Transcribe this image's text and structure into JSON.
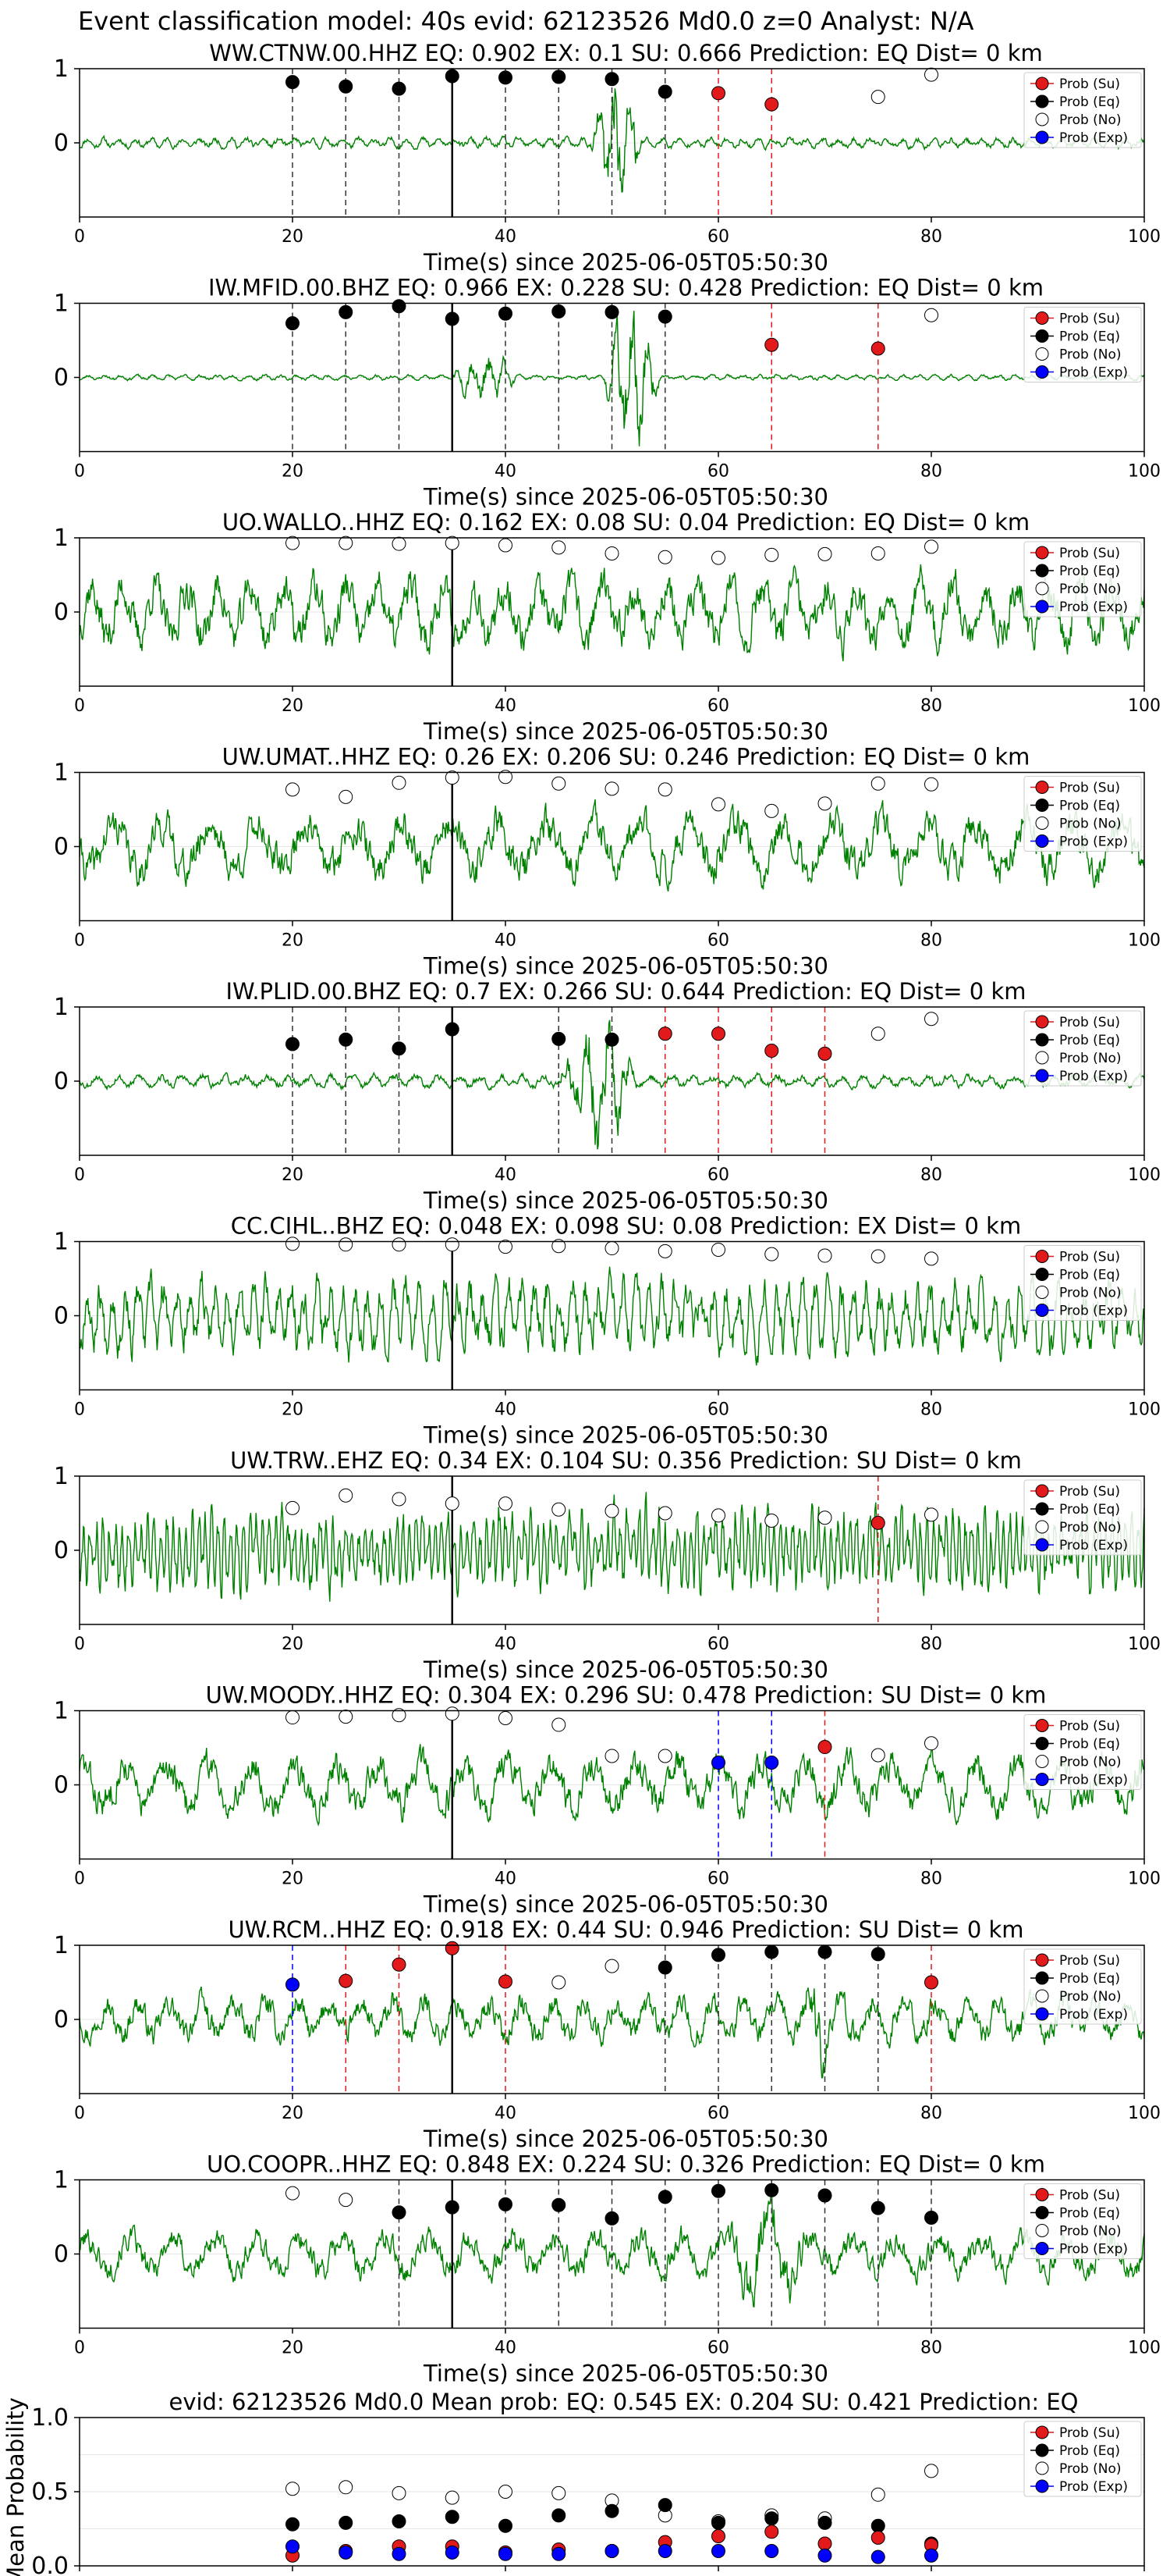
{
  "figure_title": "Event classification model: 40s evid: 62123526 Md0.0 z=0 Analyst: N/A",
  "legend_labels": [
    "Prob (Su)",
    "Prob (Eq)",
    "Prob (No)",
    "Prob (Exp)"
  ],
  "colors": {
    "Su": "#e31a1c",
    "Eq": "#000000",
    "No": "#ffffff",
    "Exp": "#0000ff",
    "waveform": "#008000",
    "pick_line": "#000000"
  },
  "x_axis_label": "Time(s) since 2025-06-05T05:50:30",
  "x_ticks": [
    0,
    20,
    40,
    60,
    80,
    100
  ],
  "y_ticks": [
    0,
    1
  ],
  "window_times": [
    20,
    25,
    30,
    35,
    40,
    45,
    50,
    55,
    60,
    65,
    70,
    75,
    80
  ],
  "chart_data": [
    {
      "type": "line",
      "title": "WW.CTNW.00.HHZ    EQ: 0.902  EX: 0.1  SU: 0.666   Prediction: EQ    Dist= 0 km",
      "xlim": [
        0,
        100
      ],
      "ylim": [
        -1,
        1
      ],
      "pick_time": 35,
      "waveform": {
        "period": 1.5,
        "noise_amp": 0.08,
        "bursts": [
          {
            "start": 48,
            "end": 56,
            "amp": 1.0
          }
        ],
        "seed": 11
      },
      "points": [
        {
          "x": 20,
          "y": 0.82,
          "cls": "Eq"
        },
        {
          "x": 25,
          "y": 0.76,
          "cls": "Eq"
        },
        {
          "x": 30,
          "y": 0.73,
          "cls": "Eq"
        },
        {
          "x": 35,
          "y": 0.9,
          "cls": "Eq"
        },
        {
          "x": 40,
          "y": 0.88,
          "cls": "Eq"
        },
        {
          "x": 45,
          "y": 0.89,
          "cls": "Eq"
        },
        {
          "x": 50,
          "y": 0.86,
          "cls": "Eq"
        },
        {
          "x": 55,
          "y": 0.69,
          "cls": "Eq"
        },
        {
          "x": 60,
          "y": 0.67,
          "cls": "Su"
        },
        {
          "x": 65,
          "y": 0.52,
          "cls": "Su"
        },
        {
          "x": 75,
          "y": 0.62,
          "cls": "No"
        },
        {
          "x": 80,
          "y": 0.92,
          "cls": "No"
        }
      ]
    },
    {
      "type": "line",
      "title": "IW.MFID.00.BHZ    EQ: 0.966  EX: 0.228  SU: 0.428   Prediction: EQ    Dist= 0 km",
      "xlim": [
        0,
        100
      ],
      "ylim": [
        -1,
        1
      ],
      "pick_time": 35,
      "waveform": {
        "period": 1.5,
        "noise_amp": 0.04,
        "bursts": [
          {
            "start": 35,
            "end": 45,
            "amp": 0.35
          },
          {
            "start": 49,
            "end": 58,
            "amp": 0.95
          }
        ],
        "seed": 23
      },
      "points": [
        {
          "x": 20,
          "y": 0.73,
          "cls": "Eq"
        },
        {
          "x": 25,
          "y": 0.88,
          "cls": "Eq"
        },
        {
          "x": 30,
          "y": 0.96,
          "cls": "Eq"
        },
        {
          "x": 35,
          "y": 0.79,
          "cls": "Eq"
        },
        {
          "x": 40,
          "y": 0.86,
          "cls": "Eq"
        },
        {
          "x": 45,
          "y": 0.89,
          "cls": "Eq"
        },
        {
          "x": 50,
          "y": 0.88,
          "cls": "Eq"
        },
        {
          "x": 55,
          "y": 0.82,
          "cls": "Eq"
        },
        {
          "x": 65,
          "y": 0.44,
          "cls": "Su"
        },
        {
          "x": 75,
          "y": 0.39,
          "cls": "Su"
        },
        {
          "x": 80,
          "y": 0.84,
          "cls": "No"
        }
      ]
    },
    {
      "type": "line",
      "title": "UO.WALLO..HHZ   EQ: 0.162  EX: 0.08  SU: 0.04   Prediction: EQ    Dist= 0 km",
      "xlim": [
        0,
        100
      ],
      "ylim": [
        -1,
        1
      ],
      "pick_time": 35,
      "waveform": {
        "period": 3,
        "noise_amp": 0.55,
        "bursts": [],
        "seed": 37
      },
      "points": [
        {
          "x": 20,
          "y": 0.93,
          "cls": "No"
        },
        {
          "x": 25,
          "y": 0.93,
          "cls": "No"
        },
        {
          "x": 30,
          "y": 0.92,
          "cls": "No"
        },
        {
          "x": 35,
          "y": 0.93,
          "cls": "No"
        },
        {
          "x": 40,
          "y": 0.9,
          "cls": "No"
        },
        {
          "x": 45,
          "y": 0.87,
          "cls": "No"
        },
        {
          "x": 50,
          "y": 0.79,
          "cls": "No"
        },
        {
          "x": 55,
          "y": 0.74,
          "cls": "No"
        },
        {
          "x": 60,
          "y": 0.73,
          "cls": "No"
        },
        {
          "x": 65,
          "y": 0.77,
          "cls": "No"
        },
        {
          "x": 70,
          "y": 0.78,
          "cls": "No"
        },
        {
          "x": 75,
          "y": 0.79,
          "cls": "No"
        },
        {
          "x": 80,
          "y": 0.88,
          "cls": "No"
        }
      ]
    },
    {
      "type": "line",
      "title": "UW.UMAT..HHZ   EQ: 0.26  EX: 0.206  SU: 0.246   Prediction: EQ    Dist= 0 km",
      "xlim": [
        0,
        100
      ],
      "ylim": [
        -1,
        1
      ],
      "pick_time": 35,
      "waveform": {
        "period": 4.5,
        "noise_amp": 0.5,
        "bursts": [],
        "seed": 41
      },
      "points": [
        {
          "x": 20,
          "y": 0.77,
          "cls": "No"
        },
        {
          "x": 25,
          "y": 0.67,
          "cls": "No"
        },
        {
          "x": 30,
          "y": 0.86,
          "cls": "No"
        },
        {
          "x": 35,
          "y": 0.93,
          "cls": "No"
        },
        {
          "x": 40,
          "y": 0.94,
          "cls": "No"
        },
        {
          "x": 45,
          "y": 0.85,
          "cls": "No"
        },
        {
          "x": 50,
          "y": 0.78,
          "cls": "No"
        },
        {
          "x": 55,
          "y": 0.77,
          "cls": "No"
        },
        {
          "x": 60,
          "y": 0.57,
          "cls": "No"
        },
        {
          "x": 65,
          "y": 0.48,
          "cls": "No"
        },
        {
          "x": 70,
          "y": 0.58,
          "cls": "No"
        },
        {
          "x": 75,
          "y": 0.85,
          "cls": "No"
        },
        {
          "x": 80,
          "y": 0.84,
          "cls": "No"
        }
      ]
    },
    {
      "type": "line",
      "title": "IW.PLID.00.BHZ    EQ: 0.7  EX: 0.266  SU: 0.644   Prediction: EQ    Dist= 0 km",
      "xlim": [
        0,
        100
      ],
      "ylim": [
        -1,
        1
      ],
      "pick_time": 35,
      "waveform": {
        "period": 2,
        "noise_amp": 0.1,
        "bursts": [
          {
            "start": 45,
            "end": 57,
            "amp": 0.9
          }
        ],
        "seed": 53
      },
      "points": [
        {
          "x": 20,
          "y": 0.5,
          "cls": "Eq"
        },
        {
          "x": 25,
          "y": 0.56,
          "cls": "Eq"
        },
        {
          "x": 30,
          "y": 0.44,
          "cls": "Eq"
        },
        {
          "x": 35,
          "y": 0.7,
          "cls": "Eq"
        },
        {
          "x": 45,
          "y": 0.57,
          "cls": "Eq"
        },
        {
          "x": 50,
          "y": 0.56,
          "cls": "Eq"
        },
        {
          "x": 55,
          "y": 0.64,
          "cls": "Su"
        },
        {
          "x": 60,
          "y": 0.64,
          "cls": "Su"
        },
        {
          "x": 65,
          "y": 0.41,
          "cls": "Su"
        },
        {
          "x": 70,
          "y": 0.37,
          "cls": "Su"
        },
        {
          "x": 75,
          "y": 0.64,
          "cls": "No"
        },
        {
          "x": 80,
          "y": 0.84,
          "cls": "No"
        }
      ]
    },
    {
      "type": "line",
      "title": "CC.CIHL..BHZ   EQ: 0.048  EX: 0.098  SU: 0.08   Prediction: EX    Dist= 0 km",
      "xlim": [
        0,
        100
      ],
      "ylim": [
        -1,
        1
      ],
      "pick_time": 35,
      "waveform": {
        "period": 1.2,
        "noise_amp": 0.55,
        "bursts": [],
        "seed": 67
      },
      "points": [
        {
          "x": 20,
          "y": 0.97,
          "cls": "No"
        },
        {
          "x": 25,
          "y": 0.96,
          "cls": "No"
        },
        {
          "x": 30,
          "y": 0.96,
          "cls": "No"
        },
        {
          "x": 35,
          "y": 0.96,
          "cls": "No"
        },
        {
          "x": 40,
          "y": 0.93,
          "cls": "No"
        },
        {
          "x": 45,
          "y": 0.94,
          "cls": "No"
        },
        {
          "x": 50,
          "y": 0.91,
          "cls": "No"
        },
        {
          "x": 55,
          "y": 0.87,
          "cls": "No"
        },
        {
          "x": 60,
          "y": 0.89,
          "cls": "No"
        },
        {
          "x": 65,
          "y": 0.83,
          "cls": "No"
        },
        {
          "x": 70,
          "y": 0.81,
          "cls": "No"
        },
        {
          "x": 75,
          "y": 0.8,
          "cls": "No"
        },
        {
          "x": 80,
          "y": 0.77,
          "cls": "No"
        }
      ]
    },
    {
      "type": "line",
      "title": "UW.TRW..EHZ   EQ: 0.34  EX: 0.104  SU: 0.356   Prediction: SU    Dist= 0 km",
      "xlim": [
        0,
        100
      ],
      "ylim": [
        -1,
        1
      ],
      "pick_time": 35,
      "waveform": {
        "period": 0.6,
        "noise_amp": 0.6,
        "bursts": [],
        "seed": 79
      },
      "points": [
        {
          "x": 20,
          "y": 0.57,
          "cls": "No"
        },
        {
          "x": 25,
          "y": 0.74,
          "cls": "No"
        },
        {
          "x": 30,
          "y": 0.69,
          "cls": "No"
        },
        {
          "x": 35,
          "y": 0.63,
          "cls": "No"
        },
        {
          "x": 40,
          "y": 0.63,
          "cls": "No"
        },
        {
          "x": 45,
          "y": 0.55,
          "cls": "No"
        },
        {
          "x": 50,
          "y": 0.53,
          "cls": "No"
        },
        {
          "x": 55,
          "y": 0.5,
          "cls": "No"
        },
        {
          "x": 60,
          "y": 0.47,
          "cls": "No"
        },
        {
          "x": 65,
          "y": 0.4,
          "cls": "No"
        },
        {
          "x": 70,
          "y": 0.44,
          "cls": "No"
        },
        {
          "x": 75,
          "y": 0.37,
          "cls": "Su"
        },
        {
          "x": 80,
          "y": 0.48,
          "cls": "No"
        }
      ]
    },
    {
      "type": "line",
      "title": "UW.MOODY..HHZ   EQ: 0.304  EX: 0.296  SU: 0.478   Prediction: SU    Dist= 0 km",
      "xlim": [
        0,
        100
      ],
      "ylim": [
        -1,
        1
      ],
      "pick_time": 35,
      "waveform": {
        "period": 4,
        "noise_amp": 0.45,
        "bursts": [],
        "seed": 83
      },
      "points": [
        {
          "x": 20,
          "y": 0.91,
          "cls": "No"
        },
        {
          "x": 25,
          "y": 0.92,
          "cls": "No"
        },
        {
          "x": 30,
          "y": 0.94,
          "cls": "No"
        },
        {
          "x": 35,
          "y": 0.96,
          "cls": "No"
        },
        {
          "x": 40,
          "y": 0.9,
          "cls": "No"
        },
        {
          "x": 45,
          "y": 0.81,
          "cls": "No"
        },
        {
          "x": 50,
          "y": 0.39,
          "cls": "No"
        },
        {
          "x": 55,
          "y": 0.39,
          "cls": "No"
        },
        {
          "x": 60,
          "y": 0.3,
          "cls": "Exp"
        },
        {
          "x": 65,
          "y": 0.3,
          "cls": "Exp"
        },
        {
          "x": 70,
          "y": 0.51,
          "cls": "Su"
        },
        {
          "x": 75,
          "y": 0.4,
          "cls": "No"
        },
        {
          "x": 80,
          "y": 0.56,
          "cls": "No"
        }
      ]
    },
    {
      "type": "line",
      "title": "UW.RCM..HHZ   EQ: 0.918  EX: 0.44  SU: 0.946   Prediction: SU    Dist= 0 km",
      "xlim": [
        0,
        100
      ],
      "ylim": [
        -1,
        1
      ],
      "pick_time": 35,
      "waveform": {
        "period": 3,
        "noise_amp": 0.35,
        "bursts": [
          {
            "start": 68,
            "end": 72,
            "amp": 0.5
          }
        ],
        "seed": 97
      },
      "points": [
        {
          "x": 20,
          "y": 0.47,
          "cls": "Exp"
        },
        {
          "x": 25,
          "y": 0.52,
          "cls": "Su"
        },
        {
          "x": 30,
          "y": 0.74,
          "cls": "Su"
        },
        {
          "x": 35,
          "y": 0.96,
          "cls": "Su"
        },
        {
          "x": 40,
          "y": 0.51,
          "cls": "Su"
        },
        {
          "x": 45,
          "y": 0.5,
          "cls": "No"
        },
        {
          "x": 50,
          "y": 0.72,
          "cls": "No"
        },
        {
          "x": 55,
          "y": 0.7,
          "cls": "Eq"
        },
        {
          "x": 60,
          "y": 0.87,
          "cls": "Eq"
        },
        {
          "x": 65,
          "y": 0.91,
          "cls": "Eq"
        },
        {
          "x": 70,
          "y": 0.91,
          "cls": "Eq"
        },
        {
          "x": 75,
          "y": 0.88,
          "cls": "Eq"
        },
        {
          "x": 80,
          "y": 0.5,
          "cls": "Su"
        }
      ]
    },
    {
      "type": "line",
      "title": "UO.COOPR..HHZ   EQ: 0.848  EX: 0.224  SU: 0.326   Prediction: EQ    Dist= 0 km",
      "xlim": [
        0,
        100
      ],
      "ylim": [
        -1,
        1
      ],
      "pick_time": 35,
      "waveform": {
        "period": 4,
        "noise_amp": 0.35,
        "bursts": [
          {
            "start": 60,
            "end": 74,
            "amp": 0.45
          }
        ],
        "seed": 101
      },
      "points": [
        {
          "x": 20,
          "y": 0.82,
          "cls": "No"
        },
        {
          "x": 25,
          "y": 0.73,
          "cls": "No"
        },
        {
          "x": 30,
          "y": 0.56,
          "cls": "Eq"
        },
        {
          "x": 35,
          "y": 0.63,
          "cls": "Eq"
        },
        {
          "x": 40,
          "y": 0.67,
          "cls": "Eq"
        },
        {
          "x": 45,
          "y": 0.66,
          "cls": "Eq"
        },
        {
          "x": 50,
          "y": 0.48,
          "cls": "Eq"
        },
        {
          "x": 55,
          "y": 0.77,
          "cls": "Eq"
        },
        {
          "x": 60,
          "y": 0.85,
          "cls": "Eq"
        },
        {
          "x": 65,
          "y": 0.86,
          "cls": "Eq"
        },
        {
          "x": 70,
          "y": 0.79,
          "cls": "Eq"
        },
        {
          "x": 75,
          "y": 0.62,
          "cls": "Eq"
        },
        {
          "x": 80,
          "y": 0.49,
          "cls": "Eq"
        }
      ]
    },
    {
      "type": "scatter",
      "title": "evid: 62123526  Md0.0   Mean prob:   EQ: 0.545  EX: 0.204  SU: 0.421   Prediction: EQ",
      "ylabel": "Mean Probability",
      "xlim": [
        0,
        100
      ],
      "ylim": [
        0,
        1
      ],
      "y_ticks": [
        0.0,
        0.5,
        1.0
      ],
      "x": [
        20,
        25,
        30,
        35,
        40,
        45,
        50,
        55,
        60,
        65,
        70,
        75,
        80
      ],
      "series": [
        {
          "name": "Prob (No)",
          "cls": "No",
          "values": [
            0.52,
            0.53,
            0.49,
            0.46,
            0.5,
            0.49,
            0.44,
            0.34,
            0.3,
            0.34,
            0.32,
            0.48,
            0.64
          ]
        },
        {
          "name": "Prob (Eq)",
          "cls": "Eq",
          "values": [
            0.28,
            0.29,
            0.3,
            0.33,
            0.27,
            0.34,
            0.37,
            0.41,
            0.29,
            0.32,
            0.29,
            0.27,
            0.15
          ]
        },
        {
          "name": "Prob (Su)",
          "cls": "Su",
          "values": [
            0.07,
            0.1,
            0.13,
            0.13,
            0.09,
            0.11,
            0.1,
            0.16,
            0.2,
            0.23,
            0.15,
            0.19,
            0.14
          ]
        },
        {
          "name": "Prob (Exp)",
          "cls": "Exp",
          "values": [
            0.13,
            0.09,
            0.08,
            0.09,
            0.08,
            0.08,
            0.1,
            0.1,
            0.1,
            0.1,
            0.07,
            0.06,
            0.07
          ]
        }
      ]
    }
  ]
}
